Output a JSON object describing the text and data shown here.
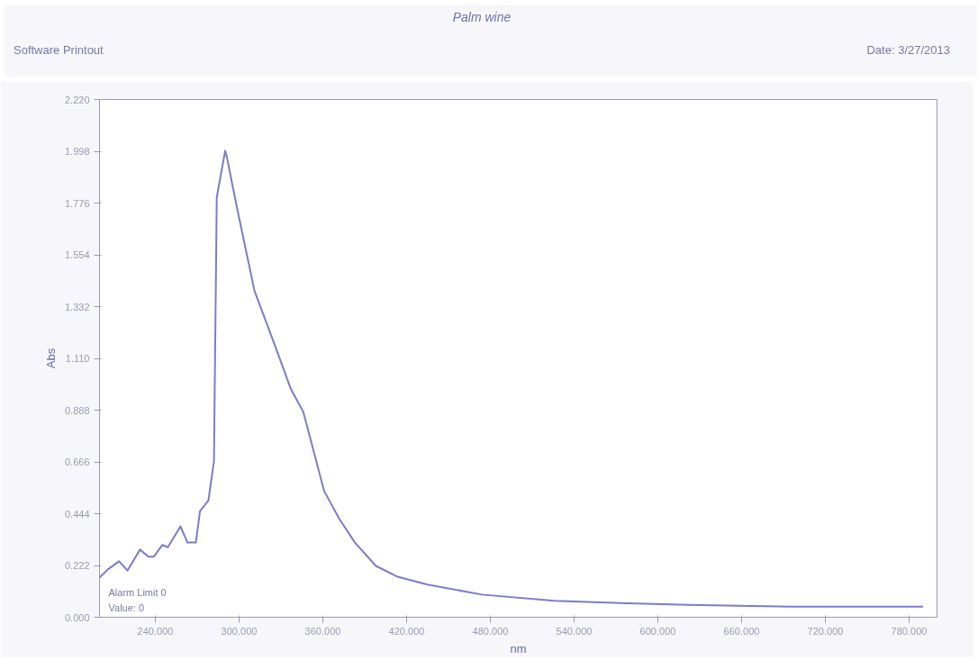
{
  "chart_data": {
    "type": "line",
    "title": "Palm wine",
    "xlabel": "nm",
    "ylabel": "Abs",
    "annotations": [
      "Software Printout",
      "Date: 3/27/2013",
      "Alarm Limit 0",
      "Value: 0"
    ],
    "x": [
      200,
      206,
      214,
      220,
      229,
      235,
      239,
      245,
      249,
      258,
      263,
      269,
      272,
      278,
      282,
      284,
      290,
      291,
      298,
      311,
      326,
      337,
      346,
      361,
      372,
      383,
      398,
      413,
      435,
      474,
      526,
      578,
      630,
      695,
      790
    ],
    "series": [
      {
        "color": "#7c7cc8",
        "values": [
          0.17,
          0.205,
          0.24,
          0.2,
          0.29,
          0.26,
          0.26,
          0.31,
          0.3,
          0.39,
          0.32,
          0.32,
          0.455,
          0.5,
          0.67,
          1.8,
          2.0,
          1.98,
          1.77,
          1.4,
          1.16,
          0.98,
          0.88,
          0.54,
          0.42,
          0.32,
          0.22,
          0.175,
          0.14,
          0.097,
          0.07,
          0.06,
          0.052,
          0.045,
          0.045
        ]
      }
    ],
    "xlim": [
      200,
      800
    ],
    "ylim": [
      0,
      2.22
    ],
    "xticks": [
      {
        "value": 240,
        "label": "240.000"
      },
      {
        "value": 300,
        "label": "300.000"
      },
      {
        "value": 360,
        "label": "360.000"
      },
      {
        "value": 420,
        "label": "420.000"
      },
      {
        "value": 480,
        "label": "480.000"
      },
      {
        "value": 540,
        "label": "540.000"
      },
      {
        "value": 600,
        "label": "600.000"
      },
      {
        "value": 660,
        "label": "660.000"
      },
      {
        "value": 720,
        "label": "720.000"
      },
      {
        "value": 780,
        "label": "780.000"
      }
    ],
    "yticks": [
      {
        "value": 0,
        "label": "0.000"
      },
      {
        "value": 0.222,
        "label": "0.222"
      },
      {
        "value": 0.444,
        "label": "0.444"
      },
      {
        "value": 0.666,
        "label": "0.666"
      },
      {
        "value": 0.888,
        "label": "0.888"
      },
      {
        "value": 1.11,
        "label": "1.110"
      },
      {
        "value": 1.332,
        "label": "1.332"
      },
      {
        "value": 1.554,
        "label": "1.554"
      },
      {
        "value": 1.776,
        "label": "1.776"
      },
      {
        "value": 1.998,
        "label": "1.998"
      },
      {
        "value": 2.22,
        "label": "2.220"
      }
    ],
    "grid": false,
    "marker": "none",
    "line_style": "solid"
  }
}
